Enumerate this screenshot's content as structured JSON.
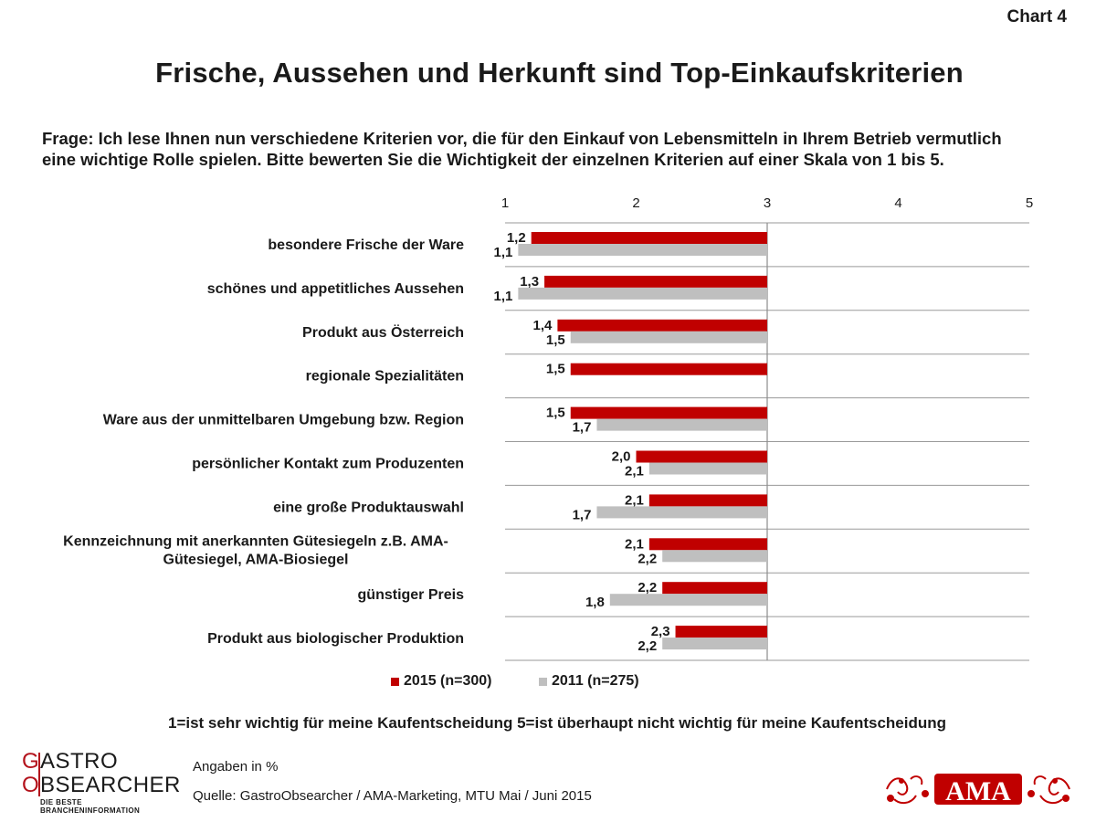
{
  "header": {
    "chart_label": "Chart 4",
    "title": "Frische, Aussehen und Herkunft sind Top-Einkaufskriterien",
    "question": "Frage: Ich lese Ihnen nun verschiedene Kriterien vor, die für den Einkauf von Lebensmitteln in Ihrem Betrieb vermutlich eine wichtige Rolle spielen. Bitte bewerten Sie die Wichtigkeit der einzelnen Kriterien auf einer Skala von 1 bis 5."
  },
  "chart_data": {
    "type": "bar",
    "orientation": "horizontal",
    "title": "Frische, Aussehen und Herkunft sind Top-Einkaufskriterien",
    "xlim": [
      1,
      5
    ],
    "x_ticks": [
      "1",
      "2",
      "3",
      "4",
      "5"
    ],
    "baseline": 3,
    "grid": true,
    "legend_position": "bottom",
    "categories": [
      "besondere Frische der Ware",
      "schönes und appetitliches Aussehen",
      "Produkt aus Österreich",
      "regionale Spezialitäten",
      "Ware aus der unmittelbaren Umgebung bzw. Region",
      "persönlicher Kontakt zum Produzenten",
      "eine große Produktauswahl",
      "Kennzeichnung mit anerkannten Gütesiegeln z.B. AMA-Gütesiegel, AMA-Biosiegel",
      "günstiger Preis",
      "Produkt aus biologischer Produktion"
    ],
    "series": [
      {
        "name": "2015 (n=300)",
        "color": "#c00000",
        "values": [
          1.2,
          1.3,
          1.4,
          1.5,
          1.5,
          2.0,
          2.1,
          2.1,
          2.2,
          2.3
        ],
        "labels": [
          "1,2",
          "1,3",
          "1,4",
          "1,5",
          "1,5",
          "2,0",
          "2,1",
          "2,1",
          "2,2",
          "2,3"
        ]
      },
      {
        "name": "2011 (n=275)",
        "color": "#bfbfbf",
        "values": [
          1.1,
          1.1,
          1.5,
          null,
          1.7,
          2.1,
          1.7,
          2.2,
          1.8,
          2.2
        ],
        "labels": [
          "1,1",
          "1,1",
          "1,5",
          "",
          "1,7",
          "2,1",
          "1,7",
          "2,2",
          "1,8",
          "2,2"
        ]
      }
    ]
  },
  "legend": {
    "item_2015": "2015 (n=300)",
    "item_2011": "2011 (n=275)"
  },
  "scale_note": "1=ist sehr wichtig für meine Kaufentscheidung  5=ist überhaupt nicht wichtig für meine Kaufentscheidung",
  "footer": {
    "unit": "Angaben in %",
    "source": "Quelle: GastroObsearcher / AMA-Marketing, MTU Mai / Juni 2015"
  },
  "logo": {
    "line1_initial": "G",
    "line1_rest": "ASTRO",
    "line2_initial": "O",
    "line2_rest": "BSEARCHER",
    "tagline": "DIE BESTE BRANCHENINFORMATION",
    "ama_text": "AMA"
  },
  "colors": {
    "accent_red": "#c00000",
    "grey": "#bfbfbf",
    "logo_red": "#b3121b"
  }
}
